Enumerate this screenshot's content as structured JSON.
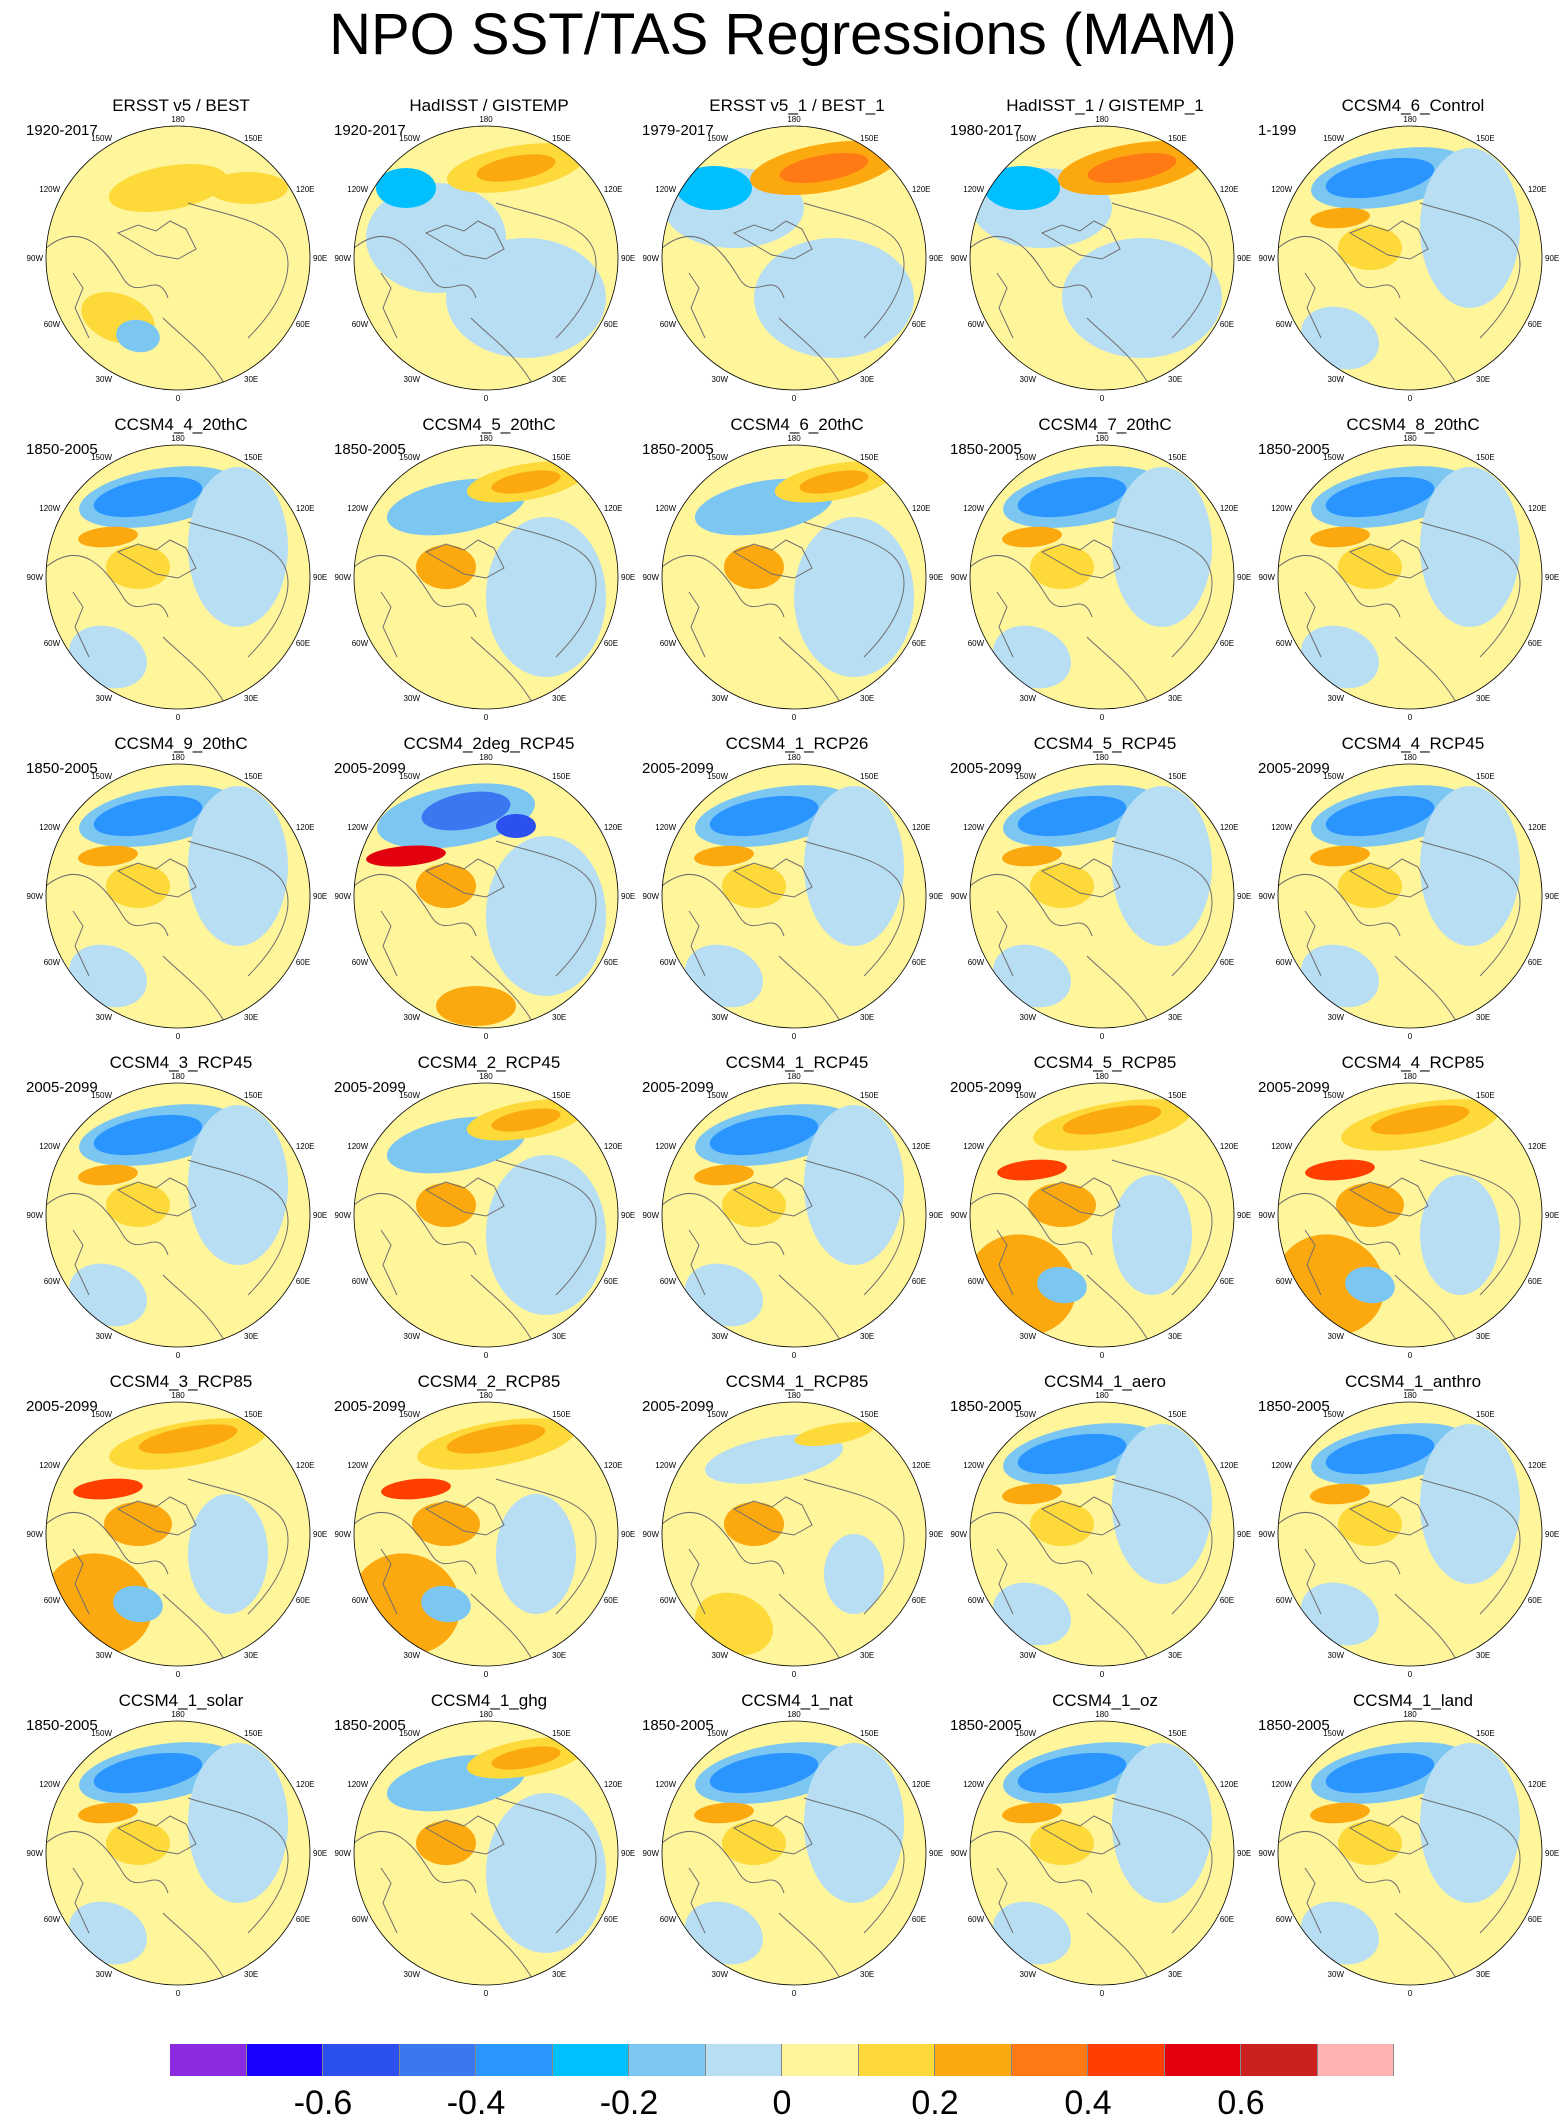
{
  "title": "NPO SST/TAS Regressions (MAM)",
  "panels": [
    {
      "title": "ERSST v5 / BEST",
      "period": "1920-2017",
      "pattern": "obs_weak"
    },
    {
      "title": "HadISST / GISTEMP",
      "period": "1920-2017",
      "pattern": "obs_warm_north"
    },
    {
      "title": "ERSST v5_1 / BEST_1",
      "period": "1979-2017",
      "pattern": "obs_strong"
    },
    {
      "title": "HadISST_1 / GISTEMP_1",
      "period": "1980-2017",
      "pattern": "obs_strong"
    },
    {
      "title": "CCSM4_6_Control",
      "period": "1-199",
      "pattern": "model_cold"
    },
    {
      "title": "CCSM4_4_20thC",
      "period": "1850-2005",
      "pattern": "model_cold"
    },
    {
      "title": "CCSM4_5_20thC",
      "period": "1850-2005",
      "pattern": "model_dipole"
    },
    {
      "title": "CCSM4_6_20thC",
      "period": "1850-2005",
      "pattern": "model_dipole"
    },
    {
      "title": "CCSM4_7_20thC",
      "period": "1850-2005",
      "pattern": "model_cold"
    },
    {
      "title": "CCSM4_8_20thC",
      "period": "1850-2005",
      "pattern": "model_cold"
    },
    {
      "title": "CCSM4_9_20thC",
      "period": "1850-2005",
      "pattern": "model_cold"
    },
    {
      "title": "CCSM4_2deg_RCP45",
      "period": "2005-2099",
      "pattern": "model_strong"
    },
    {
      "title": "CCSM4_1_RCP26",
      "period": "2005-2099",
      "pattern": "model_cold"
    },
    {
      "title": "CCSM4_5_RCP45",
      "period": "2005-2099",
      "pattern": "model_cold"
    },
    {
      "title": "CCSM4_4_RCP45",
      "period": "2005-2099",
      "pattern": "model_cold"
    },
    {
      "title": "CCSM4_3_RCP45",
      "period": "2005-2099",
      "pattern": "model_cold"
    },
    {
      "title": "CCSM4_2_RCP45",
      "period": "2005-2099",
      "pattern": "model_dipole"
    },
    {
      "title": "CCSM4_1_RCP45",
      "period": "2005-2099",
      "pattern": "model_cold"
    },
    {
      "title": "CCSM4_5_RCP85",
      "period": "2005-2099",
      "pattern": "model_warm"
    },
    {
      "title": "CCSM4_4_RCP85",
      "period": "2005-2099",
      "pattern": "model_warm"
    },
    {
      "title": "CCSM4_3_RCP85",
      "period": "2005-2099",
      "pattern": "model_warm"
    },
    {
      "title": "CCSM4_2_RCP85",
      "period": "2005-2099",
      "pattern": "model_warm"
    },
    {
      "title": "CCSM4_1_RCP85",
      "period": "2005-2099",
      "pattern": "model_neutral"
    },
    {
      "title": "CCSM4_1_aero",
      "period": "1850-2005",
      "pattern": "model_cold"
    },
    {
      "title": "CCSM4_1_anthro",
      "period": "1850-2005",
      "pattern": "model_cold"
    },
    {
      "title": "CCSM4_1_solar",
      "period": "1850-2005",
      "pattern": "model_cold"
    },
    {
      "title": "CCSM4_1_ghg",
      "period": "1850-2005",
      "pattern": "model_dipole"
    },
    {
      "title": "CCSM4_1_nat",
      "period": "1850-2005",
      "pattern": "model_cold"
    },
    {
      "title": "CCSM4_1_oz",
      "period": "1850-2005",
      "pattern": "model_cold"
    },
    {
      "title": "CCSM4_1_land",
      "period": "1850-2005",
      "pattern": "model_cold"
    }
  ],
  "longitude_labels": {
    "top": "180",
    "upper_left": "150W",
    "upper_right": "150E",
    "left_high": "120W",
    "right_high": "120E",
    "left": "90W",
    "right": "90E",
    "left_low": "60W",
    "right_low": "60E",
    "lower_left": "30W",
    "lower_right": "30E",
    "bottom": "0"
  },
  "colorbar": {
    "colors": [
      "#8a2be2",
      "#1a00ff",
      "#2c4ff0",
      "#3a78f2",
      "#2b95ff",
      "#00bfff",
      "#7cc6f2",
      "#b7def3",
      "#fff59b",
      "#fed93a",
      "#fca80f",
      "#ff7a14",
      "#ff3f00",
      "#e3000f",
      "#cc1f1f",
      "#ffb3b3"
    ],
    "tick_labels": [
      {
        "label": "-0.6",
        "edge": 2
      },
      {
        "label": "-0.4",
        "edge": 4
      },
      {
        "label": "-0.2",
        "edge": 6
      },
      {
        "label": "0",
        "edge": 8
      },
      {
        "label": "0.2",
        "edge": 10
      },
      {
        "label": "0.4",
        "edge": 12
      },
      {
        "label": "0.6",
        "edge": 14
      }
    ]
  }
}
